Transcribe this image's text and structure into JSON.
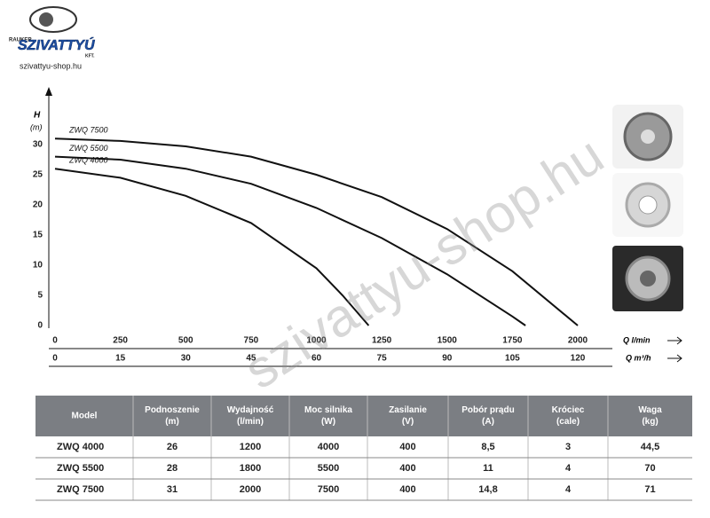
{
  "logo": {
    "top": "RAUKER",
    "brand": "SZIVATTYÚ",
    "suffix": "KFT.",
    "url": "szivattyu-shop.hu"
  },
  "watermark": "szivattyu-shop.hu",
  "chart_data": {
    "type": "line",
    "y_label": "H",
    "y_unit": "(m)",
    "x_label": "Q l/min",
    "x2_label": "Q m³/h",
    "xlim": [
      0,
      2000
    ],
    "xticks": [
      0,
      250,
      500,
      750,
      1000,
      1250,
      1500,
      1750,
      2000
    ],
    "x2lim": [
      0,
      120
    ],
    "x2ticks": [
      0,
      15,
      30,
      45,
      60,
      75,
      90,
      105,
      120
    ],
    "ylim": [
      0,
      30
    ],
    "yticks": [
      0,
      5,
      10,
      15,
      20,
      25,
      30
    ],
    "series": [
      {
        "name": "ZWQ 7500",
        "color": "#111111",
        "x": [
          0,
          250,
          500,
          750,
          1000,
          1250,
          1500,
          1750,
          2000
        ],
        "values": [
          31,
          30.6,
          29.7,
          28,
          25,
          21.3,
          16,
          9,
          0
        ]
      },
      {
        "name": "ZWQ 5500",
        "color": "#111111",
        "x": [
          0,
          250,
          500,
          750,
          1000,
          1250,
          1500,
          1750,
          1800
        ],
        "values": [
          28,
          27.5,
          26,
          23.5,
          19.5,
          14.5,
          8.5,
          1.5,
          0
        ]
      },
      {
        "name": "ZWQ 4000",
        "color": "#111111",
        "x": [
          0,
          250,
          500,
          750,
          1000,
          1100,
          1200
        ],
        "values": [
          26,
          24.5,
          21.5,
          17,
          9.5,
          5,
          0
        ]
      }
    ]
  },
  "table": {
    "header": [
      [
        "Model"
      ],
      [
        "Podnoszenie",
        "(m)"
      ],
      [
        "Wydajność",
        "(l/min)"
      ],
      [
        "Moc silnika",
        "(W)"
      ],
      [
        "Zasilanie",
        "(V)"
      ],
      [
        "Pobór prądu",
        "(A)"
      ],
      [
        "Króciec",
        "(cale)"
      ],
      [
        "Waga",
        "(kg)"
      ]
    ],
    "rows": [
      [
        "ZWQ 4000",
        "26",
        "1200",
        "4000",
        "400",
        "8,5",
        "3",
        "44,5"
      ],
      [
        "ZWQ 5500",
        "28",
        "1800",
        "5500",
        "400",
        "11",
        "4",
        "70"
      ],
      [
        "ZWQ 7500",
        "31",
        "2000",
        "7500",
        "400",
        "14,8",
        "4",
        "71"
      ]
    ]
  }
}
